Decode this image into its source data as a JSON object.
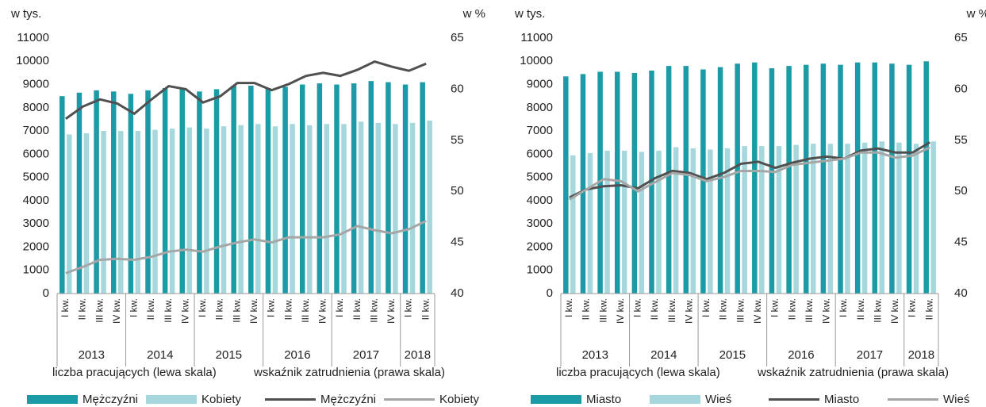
{
  "chart_data": [
    {
      "type": "bar_line",
      "ylabel": "w tys.",
      "y2label": "w %",
      "annotations": [
        "liczba pracujących (lewa skala)",
        "wskaźnik zatrudnienia (prawa skala)"
      ],
      "categories": [
        "I kw.",
        "II kw.",
        "III kw.",
        "IV kw.",
        "I kw.",
        "II kw.",
        "III kw.",
        "IV kw.",
        "I kw.",
        "II kw.",
        "III kw.",
        "IV kw.",
        "I kw.",
        "II kw.",
        "III kw.",
        "IV kw.",
        "I kw.",
        "II kw.",
        "III kw.",
        "IV kw.",
        "I kw.",
        "II kw."
      ],
      "x_groups": [
        "2013",
        "2014",
        "2015",
        "2016",
        "2017",
        "2018"
      ],
      "ylim": [
        0,
        11000
      ],
      "yticks": [
        0,
        1000,
        2000,
        3000,
        4000,
        5000,
        6000,
        7000,
        8000,
        9000,
        10000,
        11000
      ],
      "y2lim": [
        40,
        65
      ],
      "y2ticks": [
        40,
        45,
        50,
        55,
        60,
        65
      ],
      "series": [
        {
          "name": "Mężczyźni",
          "kind": "bar",
          "color": "#1a9ba6",
          "values": [
            8500,
            8650,
            8750,
            8700,
            8600,
            8750,
            8850,
            8850,
            8700,
            8800,
            8950,
            8950,
            8850,
            8900,
            9000,
            9050,
            9000,
            9050,
            9150,
            9100,
            9000,
            9100
          ]
        },
        {
          "name": "Kobiety",
          "kind": "bar",
          "color": "#a5d7dc",
          "values": [
            6850,
            6900,
            7000,
            7000,
            7000,
            7050,
            7100,
            7150,
            7100,
            7200,
            7250,
            7300,
            7200,
            7300,
            7250,
            7300,
            7300,
            7400,
            7350,
            7300,
            7350,
            7450
          ]
        },
        {
          "name": "Mężczyźni",
          "kind": "line",
          "axis": "y2",
          "color": "#505050",
          "values": [
            57.1,
            58.3,
            59.0,
            58.6,
            57.6,
            59.0,
            60.3,
            60.0,
            58.7,
            59.3,
            60.6,
            60.6,
            59.9,
            60.5,
            61.3,
            61.6,
            61.3,
            61.9,
            62.7,
            62.2,
            61.8,
            62.5
          ]
        },
        {
          "name": "Kobiety",
          "kind": "line",
          "axis": "y2",
          "color": "#a6a6a6",
          "values": [
            42.0,
            42.6,
            43.3,
            43.4,
            43.3,
            43.6,
            44.1,
            44.3,
            44.1,
            44.6,
            45.0,
            45.3,
            45.0,
            45.5,
            45.5,
            45.5,
            45.8,
            46.6,
            46.2,
            45.9,
            46.3,
            47.1
          ]
        }
      ]
    },
    {
      "type": "bar_line",
      "ylabel": "w tys.",
      "y2label": "w %",
      "annotations": [
        "liczba pracujących (lewa skala)",
        "wskaźnik zatrudnienia (prawa skala)"
      ],
      "categories": [
        "I kw.",
        "II kw.",
        "III kw.",
        "IV kw.",
        "I kw.",
        "II kw.",
        "III kw.",
        "IV kw.",
        "I kw.",
        "II kw.",
        "III kw.",
        "IV kw.",
        "I kw.",
        "II kw.",
        "III kw.",
        "IV kw.",
        "I kw.",
        "II kw.",
        "III kw.",
        "IV kw.",
        "I kw.",
        "II kw."
      ],
      "x_groups": [
        "2013",
        "2014",
        "2015",
        "2016",
        "2017",
        "2018"
      ],
      "ylim": [
        0,
        11000
      ],
      "yticks": [
        0,
        1000,
        2000,
        3000,
        4000,
        5000,
        6000,
        7000,
        8000,
        9000,
        10000,
        11000
      ],
      "y2lim": [
        40,
        65
      ],
      "y2ticks": [
        40,
        45,
        50,
        55,
        60,
        65
      ],
      "series": [
        {
          "name": "Miasto",
          "kind": "bar",
          "color": "#1a9ba6",
          "values": [
            9350,
            9450,
            9550,
            9550,
            9500,
            9600,
            9800,
            9800,
            9650,
            9750,
            9900,
            9950,
            9700,
            9800,
            9850,
            9900,
            9850,
            9950,
            9950,
            9900,
            9850,
            10000
          ]
        },
        {
          "name": "Wieś",
          "kind": "bar",
          "color": "#a5d7dc",
          "values": [
            5950,
            6050,
            6150,
            6150,
            6100,
            6150,
            6300,
            6250,
            6200,
            6250,
            6350,
            6350,
            6350,
            6400,
            6450,
            6450,
            6450,
            6500,
            6550,
            6500,
            6450,
            6550
          ]
        },
        {
          "name": "Miasto",
          "kind": "line",
          "axis": "y2",
          "color": "#505050",
          "values": [
            49.4,
            50.2,
            50.5,
            50.6,
            50.3,
            51.3,
            52.0,
            51.8,
            51.2,
            51.8,
            52.7,
            52.9,
            52.3,
            52.8,
            53.2,
            53.4,
            53.2,
            54.0,
            54.2,
            53.8,
            53.8,
            54.8
          ]
        },
        {
          "name": "Wieś",
          "kind": "line",
          "axis": "y2",
          "color": "#a6a6a6",
          "values": [
            49.2,
            50.2,
            51.2,
            51.0,
            50.0,
            50.9,
            51.8,
            51.6,
            51.0,
            51.4,
            52.0,
            52.0,
            51.9,
            52.6,
            52.8,
            53.0,
            53.2,
            53.8,
            53.8,
            53.3,
            53.5,
            54.3
          ]
        }
      ]
    }
  ]
}
